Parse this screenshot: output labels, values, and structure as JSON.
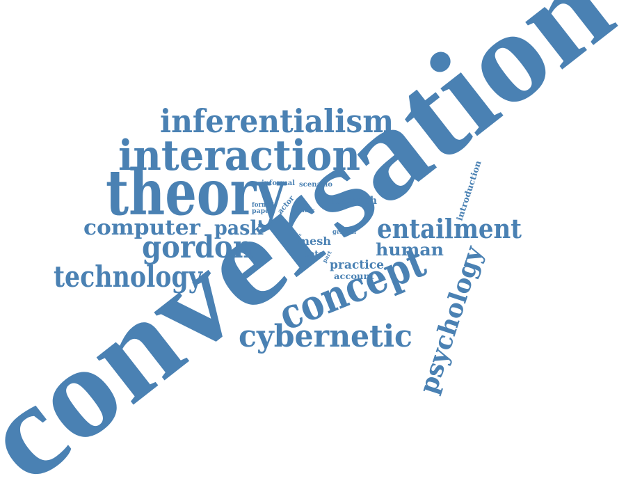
{
  "color": "#4a81b3",
  "words": {
    "conversation": "conversation",
    "theory": "theory",
    "interaction": "interaction",
    "inferentialism": "inferentialism",
    "concept": "concept",
    "cybernetic": "cybernetic",
    "entailment": "entailment",
    "technology": "technology",
    "computer": "computer",
    "gordon": "gordon",
    "psychology": "psychology",
    "pask": "pask",
    "human": "human",
    "research": "research",
    "practice": "practice",
    "mesh": "mesh",
    "account": "account",
    "tote": "tote",
    "introduction": "introduction",
    "informal": "informal",
    "scenario": "scenario",
    "formal": "formal",
    "paper": "paper",
    "actor": "actor",
    "reader": "reader",
    "general": "general",
    "part": "part",
    "tiny": "set"
  }
}
